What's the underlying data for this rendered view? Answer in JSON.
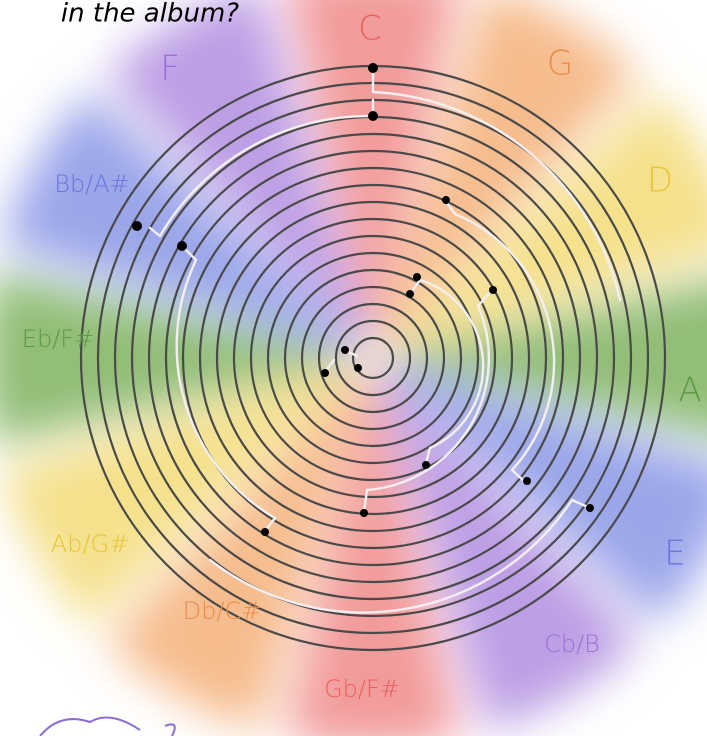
{
  "header": {
    "text": "in the album?"
  },
  "keys": [
    {
      "label": "C"
    },
    {
      "label": "G"
    },
    {
      "label": "D"
    },
    {
      "label": "A"
    },
    {
      "label": "E"
    },
    {
      "label": "Cb/B"
    },
    {
      "label": "Gb/F#"
    },
    {
      "label": "Db/C#"
    },
    {
      "label": "Ab/G#"
    },
    {
      "label": "Eb/F#"
    },
    {
      "label": "Bb/A#"
    },
    {
      "label": "F"
    }
  ]
}
